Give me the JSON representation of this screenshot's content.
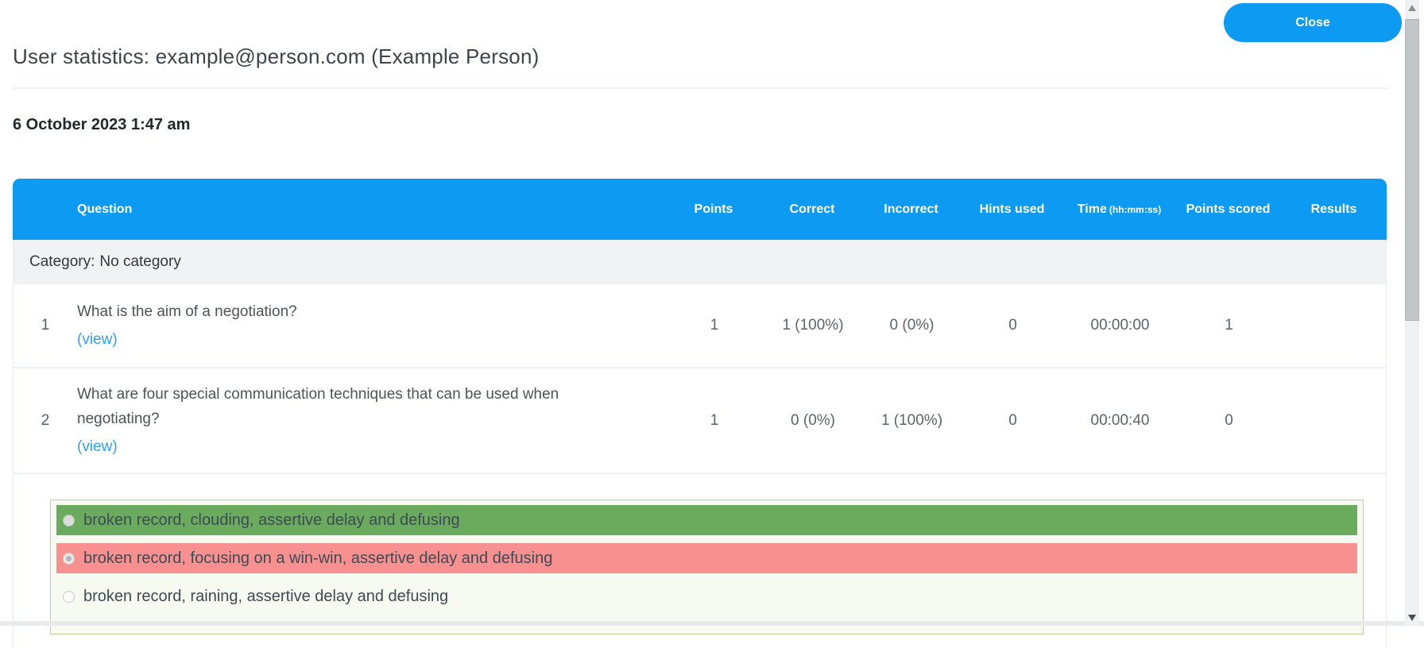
{
  "modal": {
    "close_label": "Close",
    "title": "User statistics: example@person.com (Example Person)",
    "datetime": "6 October 2023 1:47 am"
  },
  "table": {
    "headers": {
      "question": "Question",
      "points": "Points",
      "correct": "Correct",
      "incorrect": "Incorrect",
      "hints": "Hints used",
      "time": "Time",
      "time_unit": "(hh:mm:ss)",
      "points_scored": "Points scored",
      "results": "Results"
    },
    "category": {
      "label": "Category:",
      "value": "No category"
    },
    "rows": [
      {
        "num": "1",
        "question": "What is the aim of a negotiation?",
        "view_link": "(view)",
        "points": "1",
        "correct": "1 (100%)",
        "incorrect": "0 (0%)",
        "hints_used": "0",
        "time": "00:00:00",
        "points_scored": "1",
        "results": ""
      },
      {
        "num": "2",
        "question": "What are four special communication techniques that can be used when negotiating?",
        "view_link": "(view)",
        "points": "1",
        "correct": "0 (0%)",
        "incorrect": "1 (100%)",
        "hints_used": "0",
        "time": "00:00:40",
        "points_scored": "0",
        "results": ""
      }
    ]
  },
  "answer_review": {
    "options": [
      {
        "text": "broken record, clouding, assertive delay and defusing",
        "state": "correct"
      },
      {
        "text": "broken record, focusing on a win-win, assertive delay and defusing",
        "state": "incorrect"
      },
      {
        "text": "broken record, raining, assertive delay and defusing",
        "state": "neutral"
      }
    ]
  },
  "colors": {
    "accent_blue": "#0d9af3",
    "correct_green": "#2b9a2b",
    "incorrect_red": "#ee1111",
    "correct_option_bg": "#6aab5e",
    "incorrect_option_bg": "#f89090",
    "category_row_bg": "#f0f2f4"
  }
}
